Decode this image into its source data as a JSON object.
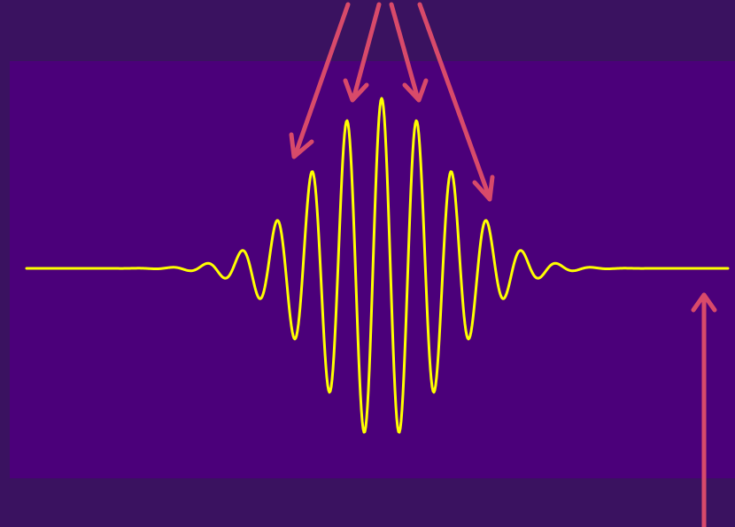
{
  "colors": {
    "background": "#3a1260",
    "panel": "#4b007a",
    "waveform": "#ffff00",
    "arrows": "#d84a6a"
  },
  "icons": {
    "annotation_arrow": "arrow-icon"
  }
}
